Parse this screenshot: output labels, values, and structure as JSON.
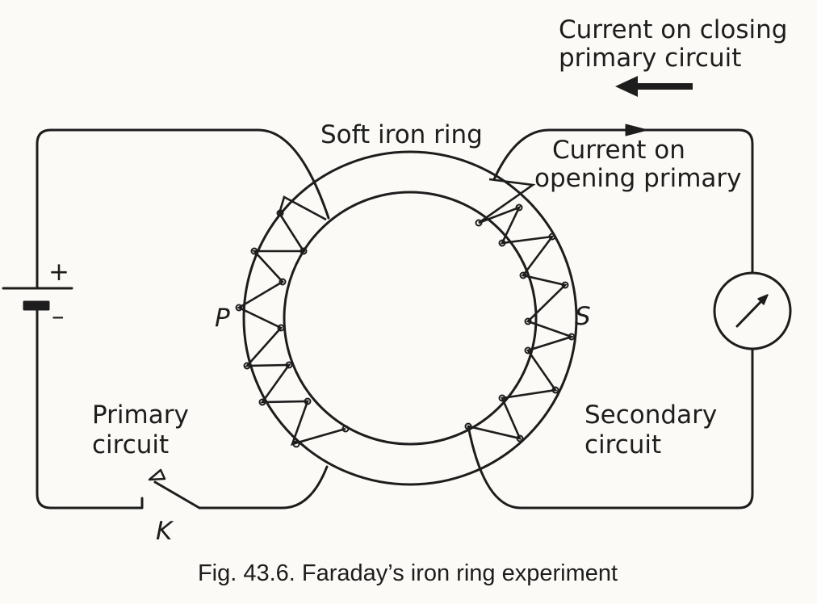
{
  "labels": {
    "current_closing_line1": "Current on closing",
    "current_closing_line2": "primary circuit",
    "soft_iron_ring": "Soft iron ring",
    "current_opening_line1": "Current on",
    "current_opening_line2": "opening primary",
    "battery_plus": "+",
    "battery_minus": "–",
    "primary_coil": "P",
    "secondary_coil": "S",
    "primary_line1": "Primary",
    "primary_line2": "circuit",
    "secondary_line1": "Secondary",
    "secondary_line2": "circuit",
    "key": "K"
  },
  "caption": "Fig. 43.6. Faraday’s iron ring experiment",
  "colors": {
    "ink": "#1d1d1d",
    "paper": "#fbfaf7"
  }
}
